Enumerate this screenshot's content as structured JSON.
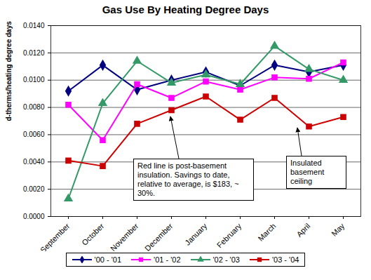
{
  "chart_data": {
    "type": "line",
    "title": "Gas Use By Heating Degree Days",
    "y_label": "d-therms/heating degree days",
    "categories": [
      "September",
      "October",
      "November",
      "December",
      "January",
      "February",
      "March",
      "April",
      "May"
    ],
    "series": [
      {
        "name": "'00 - '01",
        "color": "#000080",
        "marker": "diamond",
        "values": [
          0.0092,
          0.0111,
          0.0093,
          0.01,
          0.0106,
          0.0096,
          0.0111,
          0.0106,
          0.0111
        ]
      },
      {
        "name": "'01 - '02",
        "color": "#ff00ff",
        "marker": "square",
        "values": [
          0.0082,
          0.0056,
          0.0097,
          0.0087,
          0.0099,
          0.0093,
          0.0102,
          0.0101,
          0.0113
        ]
      },
      {
        "name": "'02 - '03",
        "color": "#339966",
        "marker": "triangle",
        "values": [
          0.0013,
          0.0083,
          0.0114,
          0.0098,
          0.0104,
          0.0097,
          0.0125,
          0.0108,
          0.01
        ]
      },
      {
        "name": "'03 - '04",
        "color": "#cc0000",
        "marker": "square",
        "values": [
          0.0041,
          0.0037,
          0.0068,
          0.0078,
          0.0088,
          0.0071,
          0.0087,
          0.0066,
          0.0073
        ]
      }
    ],
    "ylim": [
      0,
      0.014
    ],
    "yticks": [
      {
        "value": 0,
        "label": "0.0000"
      },
      {
        "value": 0.002,
        "label": "0.0020"
      },
      {
        "value": 0.004,
        "label": "0.0040"
      },
      {
        "value": 0.006,
        "label": "0.0060"
      },
      {
        "value": 0.008,
        "label": "0.0080"
      },
      {
        "value": 0.01,
        "label": "0.0100"
      },
      {
        "value": 0.012,
        "label": "0.0120"
      },
      {
        "value": 0.014,
        "label": "0.0140"
      }
    ],
    "grid": true,
    "legend": "bottom",
    "annotations": [
      {
        "text": "Red line is post-basement insulation. Savings to date, relative to average, is $183, ~ 30%."
      },
      {
        "text": "Insulated basement ceiling"
      }
    ]
  }
}
